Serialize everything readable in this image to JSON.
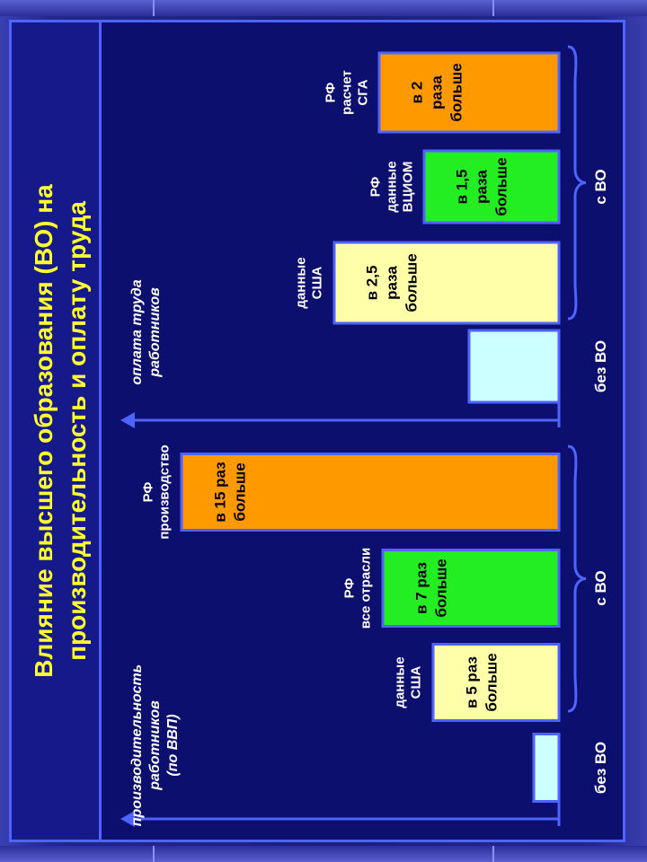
{
  "title": {
    "line1": "Влияние высшего образования (ВО) на",
    "line2": "производительность и оплату труда"
  },
  "colors": {
    "background": "#0c0f6e",
    "border": "#4e63ff",
    "title_text": "#ffff33",
    "no_he": "#ccffff",
    "usa": "#ffffaa",
    "rf_green": "#22ee22",
    "rf_orange": "#ff9900"
  },
  "chart_data": [
    {
      "type": "bar",
      "orientation": "horizontal",
      "ylabel": [
        "производительность",
        "работников",
        "(по ВВП)"
      ],
      "group_labels": {
        "without": "без ВО",
        "with": "с ВО"
      },
      "bars": [
        {
          "key": "base",
          "label": [],
          "value": 1,
          "bar_text": [],
          "color": "#ccffff",
          "group": "without"
        },
        {
          "key": "usa",
          "label": [
            "данные",
            "США"
          ],
          "value": 5,
          "bar_text": [
            "в 5 раз",
            "больше"
          ],
          "color": "#ffffaa",
          "group": "with"
        },
        {
          "key": "rf_all",
          "label": [
            "РФ",
            "все отрасли"
          ],
          "value": 7,
          "bar_text": [
            "в 7 раз",
            "больше"
          ],
          "color": "#22ee22",
          "group": "with"
        },
        {
          "key": "rf_prod",
          "label": [
            "РФ",
            "производство"
          ],
          "value": 15,
          "bar_text": [
            "в 15 раз",
            "больше"
          ],
          "color": "#ff9900",
          "group": "with"
        }
      ]
    },
    {
      "type": "bar",
      "orientation": "horizontal",
      "ylabel": [
        "оплата труда",
        "работников"
      ],
      "group_labels": {
        "without": "без ВО",
        "with": "с ВО"
      },
      "bars": [
        {
          "key": "base",
          "label": [],
          "value": 1,
          "bar_text": [],
          "color": "#ccffff",
          "group": "without"
        },
        {
          "key": "usa",
          "label": [
            "данные",
            "США"
          ],
          "value": 2.5,
          "bar_text": [
            "в 2,5",
            "раза",
            "больше"
          ],
          "color": "#ffffaa",
          "group": "with"
        },
        {
          "key": "rf_vciom",
          "label": [
            "РФ",
            "данные",
            "ВЦИОМ"
          ],
          "value": 1.5,
          "bar_text": [
            "в 1,5",
            "раза",
            "больше"
          ],
          "color": "#22ee22",
          "group": "with"
        },
        {
          "key": "rf_sga",
          "label": [
            "РФ",
            "расчет",
            "СГА"
          ],
          "value": 2,
          "bar_text": [
            "в 2",
            "раза",
            "больше"
          ],
          "color": "#ff9900",
          "group": "with"
        }
      ]
    }
  ]
}
